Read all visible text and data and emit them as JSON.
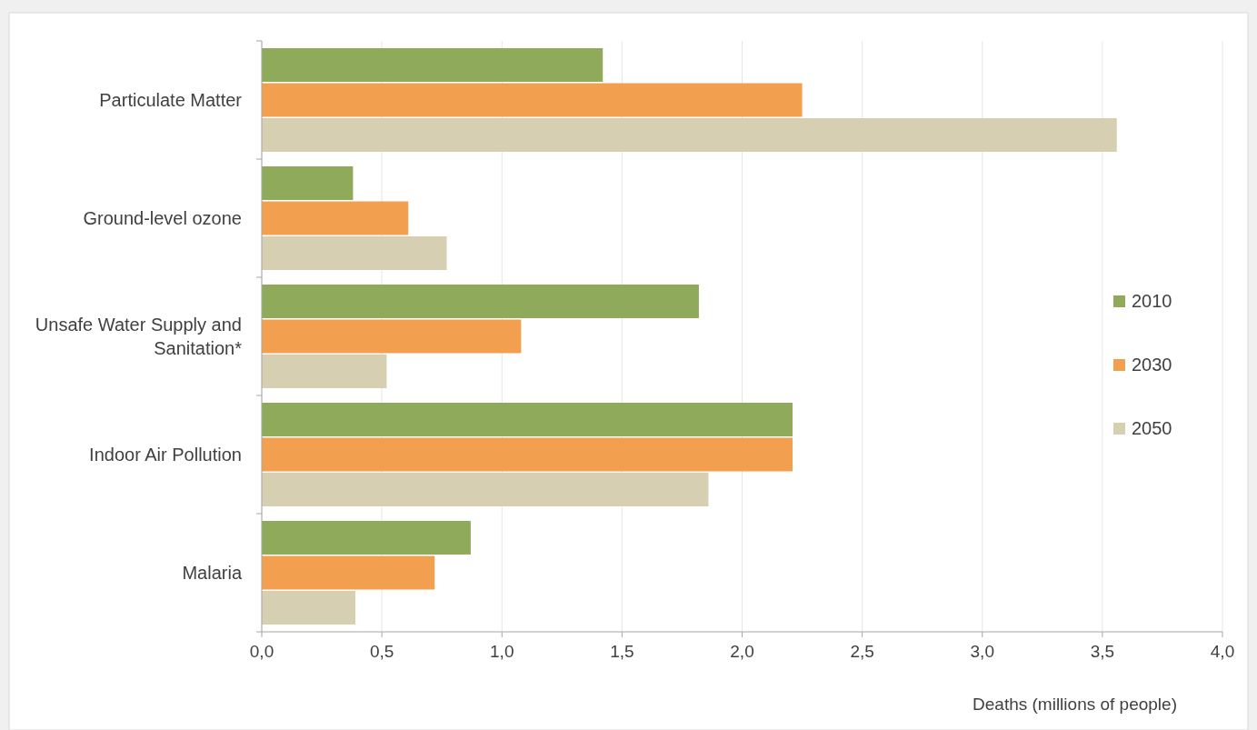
{
  "chart_data": {
    "type": "bar",
    "orientation": "horizontal",
    "xlabel": "Deaths (millions of people)",
    "categories": [
      "Particulate Matter",
      "Ground-level ozone",
      "Unsafe Water Supply and Sanitation*",
      "Indoor Air Pollution",
      "Malaria"
    ],
    "series": [
      {
        "name": "2010",
        "color": "#8faa5a",
        "values": [
          1.42,
          0.38,
          1.82,
          2.21,
          0.87
        ]
      },
      {
        "name": "2030",
        "color": "#f2a050",
        "values": [
          2.25,
          0.61,
          1.08,
          2.21,
          0.72
        ]
      },
      {
        "name": "2050",
        "color": "#d6cfb2",
        "values": [
          3.56,
          0.77,
          0.52,
          1.86,
          0.39
        ]
      }
    ],
    "xlim": [
      0,
      4
    ],
    "xticks": [
      {
        "value": 0,
        "label": "0,0"
      },
      {
        "value": 0.5,
        "label": "0,5"
      },
      {
        "value": 1,
        "label": "1,0"
      },
      {
        "value": 1.5,
        "label": "1,5"
      },
      {
        "value": 2,
        "label": "2,0"
      },
      {
        "value": 2.5,
        "label": "2,5"
      },
      {
        "value": 3,
        "label": "3,0"
      },
      {
        "value": 3.5,
        "label": "3,5"
      },
      {
        "value": 4,
        "label": "4,0"
      }
    ],
    "grid": "x",
    "legend": "right"
  }
}
